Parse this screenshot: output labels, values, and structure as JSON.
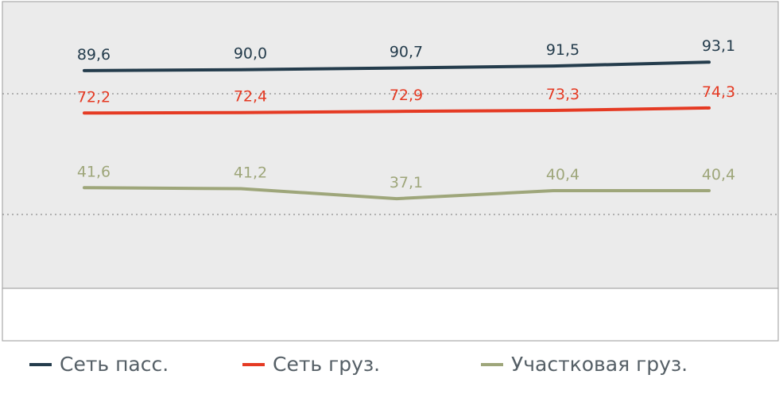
{
  "chart_data": {
    "type": "line",
    "title": "",
    "xlabel": "",
    "ylabel": "",
    "categories": [
      "",
      "",
      "",
      "",
      ""
    ],
    "grid": "dotted horizontal",
    "legend_position": "bottom",
    "series": [
      {
        "name": "Сеть пасс.",
        "color": "#243c4c",
        "values": [
          89.6,
          90.0,
          90.7,
          91.5,
          93.1
        ],
        "labels": [
          "89,6",
          "90,0",
          "90,7",
          "91,5",
          "93,1"
        ]
      },
      {
        "name": "Сеть груз.",
        "color": "#e53a23",
        "values": [
          72.2,
          72.4,
          72.9,
          73.3,
          74.3
        ],
        "labels": [
          "72,2",
          "72,4",
          "72,9",
          "73,3",
          "74,3"
        ]
      },
      {
        "name": "Участковая груз.",
        "color": "#9ea67a",
        "values": [
          41.6,
          41.2,
          37.1,
          40.4,
          40.4
        ],
        "labels": [
          "41,6",
          "41,2",
          "37,1",
          "40,4",
          "40,4"
        ]
      }
    ]
  }
}
